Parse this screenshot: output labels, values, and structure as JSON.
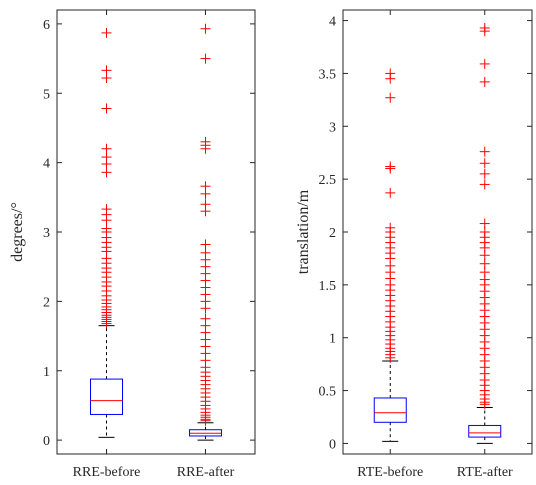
{
  "chart_data": [
    {
      "type": "box",
      "ylabel": "degrees/°",
      "ylim": [
        -0.2,
        6.2
      ],
      "yticks": [
        0,
        1,
        2,
        3,
        4,
        5,
        6
      ],
      "tick_labels": [
        "0",
        "1",
        "2",
        "3",
        "4",
        "5",
        "6"
      ],
      "categories": [
        "RRE-before",
        "RRE-after"
      ],
      "grid": false,
      "colors": {
        "box": "#0000ff",
        "median": "#ff0000",
        "whisker": "#000000",
        "outlier": "#ff0000"
      },
      "boxes": [
        {
          "category": "RRE-before",
          "whisker_low": 0.04,
          "q1": 0.37,
          "median": 0.57,
          "q3": 0.88,
          "whisker_high": 1.65,
          "outliers": [
            5.87,
            5.33,
            5.22,
            4.78,
            4.2,
            4.08,
            3.98,
            3.86,
            3.33,
            3.25,
            3.17,
            3.05,
            3.0,
            2.92,
            2.85,
            2.78,
            2.72,
            2.62,
            2.55,
            2.48,
            2.42,
            2.35,
            2.28,
            2.22,
            2.15,
            2.08,
            2.02,
            1.97,
            1.92,
            1.88,
            1.84,
            1.8,
            1.77,
            1.74,
            1.71,
            1.68
          ]
        },
        {
          "category": "RRE-after",
          "whisker_low": 0.0,
          "q1": 0.06,
          "median": 0.1,
          "q3": 0.15,
          "whisker_high": 0.25,
          "outliers": [
            5.93,
            5.5,
            4.3,
            4.25,
            4.2,
            3.66,
            3.55,
            3.4,
            3.3,
            2.82,
            2.7,
            2.6,
            2.5,
            2.4,
            2.3,
            2.2,
            2.1,
            2.0,
            1.9,
            1.75,
            1.65,
            1.55,
            1.45,
            1.35,
            1.25,
            1.15,
            1.05,
            0.98,
            0.92,
            0.86,
            0.8,
            0.74,
            0.68,
            0.62,
            0.56,
            0.5,
            0.45,
            0.4,
            0.36,
            0.33,
            0.3,
            0.28
          ]
        }
      ]
    },
    {
      "type": "box",
      "ylabel": "translation/m",
      "ylim": [
        -0.1,
        4.1
      ],
      "yticks": [
        0,
        0.5,
        1,
        1.5,
        2,
        2.5,
        3,
        3.5,
        4
      ],
      "tick_labels": [
        "0",
        "0.5",
        "1",
        "1.5",
        "2",
        "2.5",
        "3",
        "3.5",
        "4"
      ],
      "categories": [
        "RTE-before",
        "RTE-after"
      ],
      "grid": false,
      "colors": {
        "box": "#0000ff",
        "median": "#ff0000",
        "whisker": "#000000",
        "outlier": "#ff0000"
      },
      "boxes": [
        {
          "category": "RTE-before",
          "whisker_low": 0.02,
          "q1": 0.2,
          "median": 0.29,
          "q3": 0.43,
          "whisker_high": 0.78,
          "outliers": [
            3.5,
            3.45,
            3.27,
            2.62,
            2.6,
            2.37,
            2.04,
            2.0,
            1.95,
            1.9,
            1.85,
            1.8,
            1.75,
            1.68,
            1.62,
            1.56,
            1.5,
            1.45,
            1.4,
            1.35,
            1.3,
            1.25,
            1.2,
            1.15,
            1.1,
            1.06,
            1.02,
            0.98,
            0.94,
            0.9,
            0.87,
            0.84,
            0.81
          ]
        },
        {
          "category": "RTE-after",
          "whisker_low": 0.0,
          "q1": 0.06,
          "median": 0.1,
          "q3": 0.17,
          "whisker_high": 0.34,
          "outliers": [
            3.93,
            3.9,
            3.59,
            3.42,
            2.76,
            2.65,
            2.55,
            2.45,
            2.08,
            2.0,
            1.95,
            1.9,
            1.85,
            1.78,
            1.7,
            1.62,
            1.55,
            1.5,
            1.44,
            1.38,
            1.32,
            1.26,
            1.2,
            1.14,
            1.08,
            1.02,
            0.96,
            0.9,
            0.84,
            0.78,
            0.72,
            0.66,
            0.6,
            0.55,
            0.5,
            0.46,
            0.42,
            0.39,
            0.37
          ]
        }
      ]
    }
  ]
}
